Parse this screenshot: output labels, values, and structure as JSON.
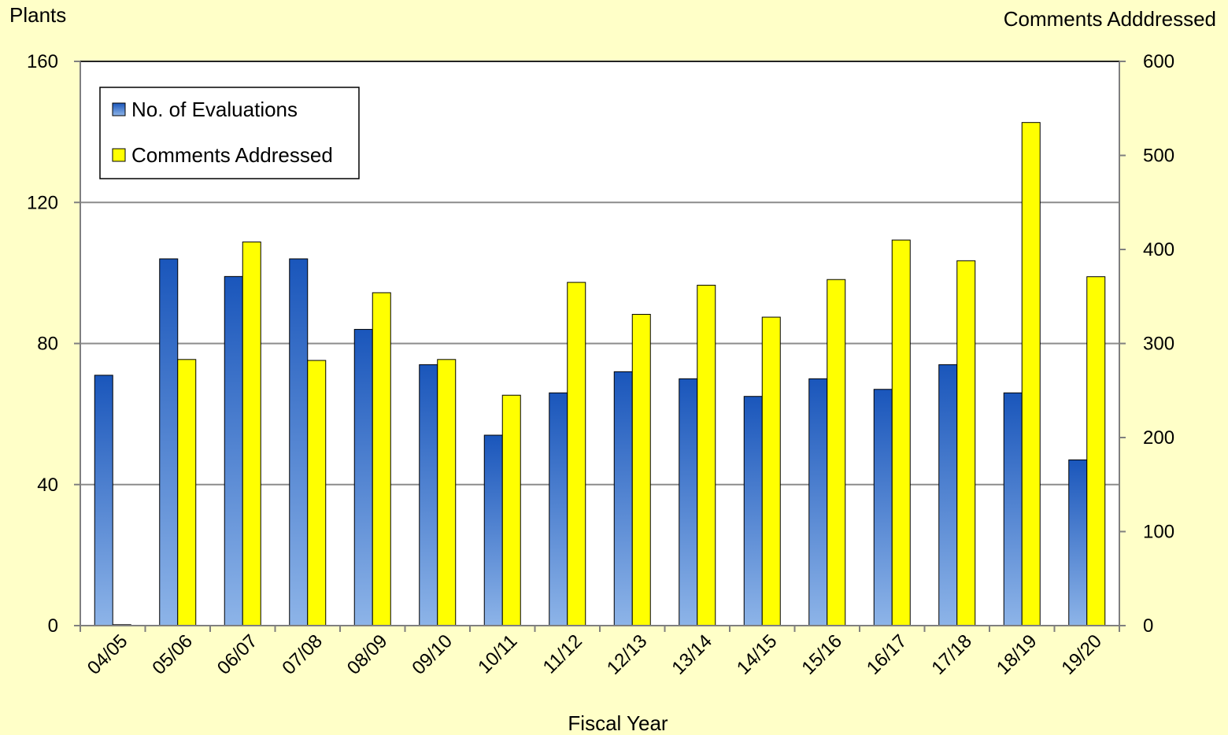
{
  "chart_data": {
    "type": "bar",
    "categories": [
      "04/05",
      "05/06",
      "06/07",
      "07/08",
      "08/09",
      "09/10",
      "10/11",
      "11/12",
      "12/13",
      "13/14",
      "14/15",
      "15/16",
      "16/17",
      "17/18",
      "18/19",
      "19/20"
    ],
    "series": [
      {
        "name": "No. of Evaluations",
        "axis": "left",
        "color": "#1f5fc0",
        "values": [
          71,
          104,
          99,
          104,
          84,
          74,
          54,
          66,
          72,
          70,
          65,
          70,
          67,
          74,
          66,
          47
        ]
      },
      {
        "name": "Comments Addressed",
        "axis": "right",
        "color": "#ffff00",
        "values": [
          1,
          283,
          408,
          282,
          354,
          283,
          245,
          365,
          331,
          362,
          328,
          368,
          410,
          388,
          535,
          371
        ]
      }
    ],
    "xlabel": "Fiscal Year",
    "ylabel_left": "Plants",
    "ylabel_right": "Comments Adddressed",
    "ylim_left": [
      0,
      160
    ],
    "yticks_left": [
      0,
      40,
      80,
      120,
      160
    ],
    "ylim_right": [
      0,
      600
    ],
    "yticks_right": [
      0,
      100,
      200,
      300,
      400,
      500,
      600
    ],
    "grid": "horizontal major",
    "legend_position": "top-left"
  }
}
